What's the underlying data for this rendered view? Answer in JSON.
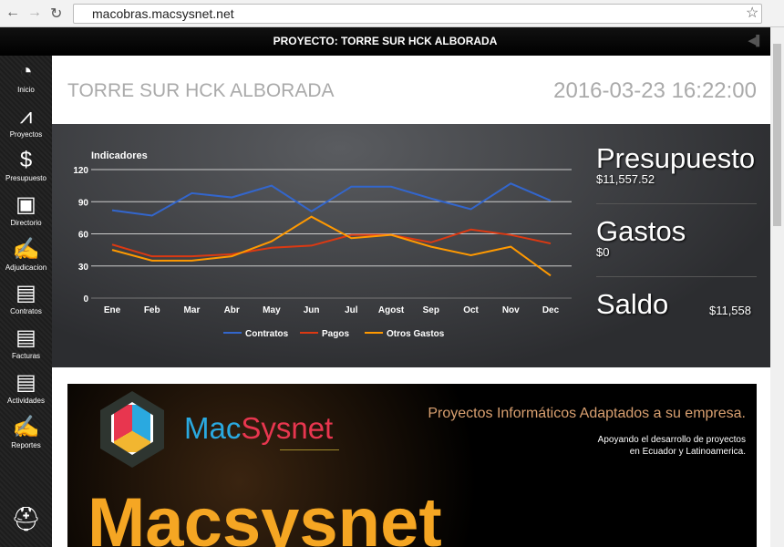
{
  "browser": {
    "url": "macobras.macsysnet.net"
  },
  "header": {
    "title": "PROYECTO: TORRE SUR HCK ALBORADA"
  },
  "sidebar": {
    "items": [
      {
        "label": "Inicio",
        "icon": "pie-chart-icon",
        "glyph": "◔"
      },
      {
        "label": "Proyectos",
        "icon": "compass-icon",
        "glyph": "⩘"
      },
      {
        "label": "Presupuesto",
        "icon": "money-clock-icon",
        "glyph": "$"
      },
      {
        "label": "Directorio",
        "icon": "address-book-icon",
        "glyph": "▣"
      },
      {
        "label": "Adjudicacion",
        "icon": "signed-document-icon",
        "glyph": "✍"
      },
      {
        "label": "Contratos",
        "icon": "contract-icon",
        "glyph": "▤"
      },
      {
        "label": "Facturas",
        "icon": "invoice-icon",
        "glyph": "▤"
      },
      {
        "label": "Actividades",
        "icon": "activities-document-icon",
        "glyph": "▤"
      },
      {
        "label": "Reportes",
        "icon": "report-icon",
        "glyph": "✍"
      }
    ],
    "bottom_icon": "hard-hat-icon"
  },
  "main": {
    "project_title": "TORRE SUR HCK ALBORADA",
    "datetime": "2016-03-23 16:22:00"
  },
  "stats": {
    "presupuesto": {
      "label": "Presupuesto",
      "value": "$11,557.52"
    },
    "gastos": {
      "label": "Gastos",
      "value": "$0"
    },
    "saldo": {
      "label": "Saldo",
      "value": "$11,558"
    }
  },
  "banner": {
    "logo_a": "Mac",
    "logo_b": "Sysnet",
    "slogan": "Proyectos Informáticos Adaptados a su empresa.",
    "sub1": "Apoyando el desarrollo de proyectos",
    "sub2": "en Ecuador y Latinoamerica.",
    "big": "Macsysnet"
  },
  "chart_data": {
    "type": "line",
    "title": "Indicadores",
    "categories": [
      "Ene",
      "Feb",
      "Mar",
      "Abr",
      "May",
      "Jun",
      "Jul",
      "Agost",
      "Sep",
      "Oct",
      "Nov",
      "Dec"
    ],
    "ylim": [
      0,
      120
    ],
    "yticks": [
      0,
      30,
      60,
      90,
      120
    ],
    "grid": true,
    "legend": "bottom",
    "series": [
      {
        "name": "Contratos",
        "color": "#3366cc",
        "values": [
          82,
          77,
          98,
          94,
          105,
          81,
          104,
          104,
          93,
          83,
          107,
          91
        ]
      },
      {
        "name": "Pagos",
        "color": "#dc3912",
        "values": [
          50,
          39,
          39,
          41,
          47,
          49,
          59,
          59,
          52,
          64,
          59,
          51
        ]
      },
      {
        "name": "Otros Gastos",
        "color": "#ff9900",
        "values": [
          45,
          35,
          35,
          39,
          53,
          76,
          56,
          59,
          48,
          40,
          48,
          21
        ]
      }
    ]
  }
}
